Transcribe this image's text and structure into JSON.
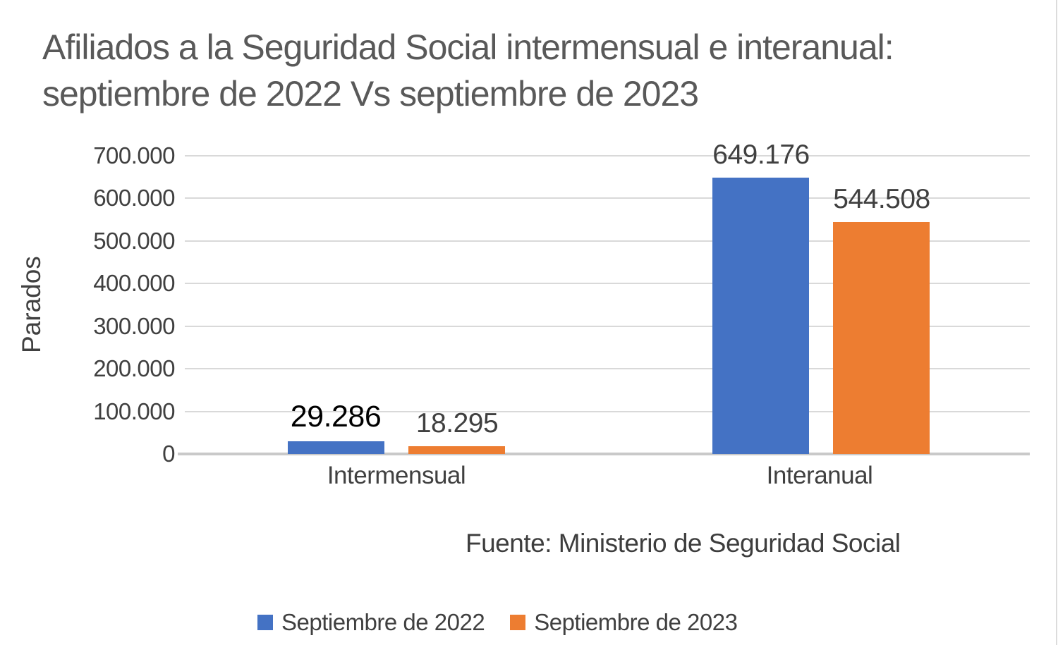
{
  "title": {
    "line1": "Afiliados a la Seguridad Social intermensual e interanual:",
    "line2": "septiembre de 2022 Vs septiembre de 2023"
  },
  "source_note": "Fuente: Ministerio de Seguridad Social",
  "colors": {
    "series_2022": "#4472C4",
    "series_2023": "#ED7D31",
    "title_text": "#595959",
    "axis_text": "#404040",
    "gridline": "#D9D9D9",
    "axis_line": "#C9C9C9",
    "emphasis_label": "#000000"
  },
  "chart_data": {
    "type": "bar",
    "title": "Afiliados a la Seguridad Social intermensual e interanual: septiembre de 2022 Vs septiembre de 2023",
    "xlabel": "",
    "ylabel": "Parados",
    "categories": [
      "Intermensual",
      "Interanual"
    ],
    "series": [
      {
        "name": "Septiembre de 2022",
        "color": "#4472C4",
        "values": [
          29286,
          649176
        ],
        "labels": [
          "29.286",
          "649.176"
        ]
      },
      {
        "name": "Septiembre de 2023",
        "color": "#ED7D31",
        "values": [
          18295,
          544508
        ],
        "labels": [
          "18.295",
          "544.508"
        ]
      }
    ],
    "ylim": [
      0,
      700000
    ],
    "ytick_interval": 100000,
    "ytick_labels": [
      "0",
      "100.000",
      "200.000",
      "300.000",
      "400.000",
      "500.000",
      "600.000",
      "700.000"
    ],
    "grid": true,
    "legend_position": "bottom"
  }
}
